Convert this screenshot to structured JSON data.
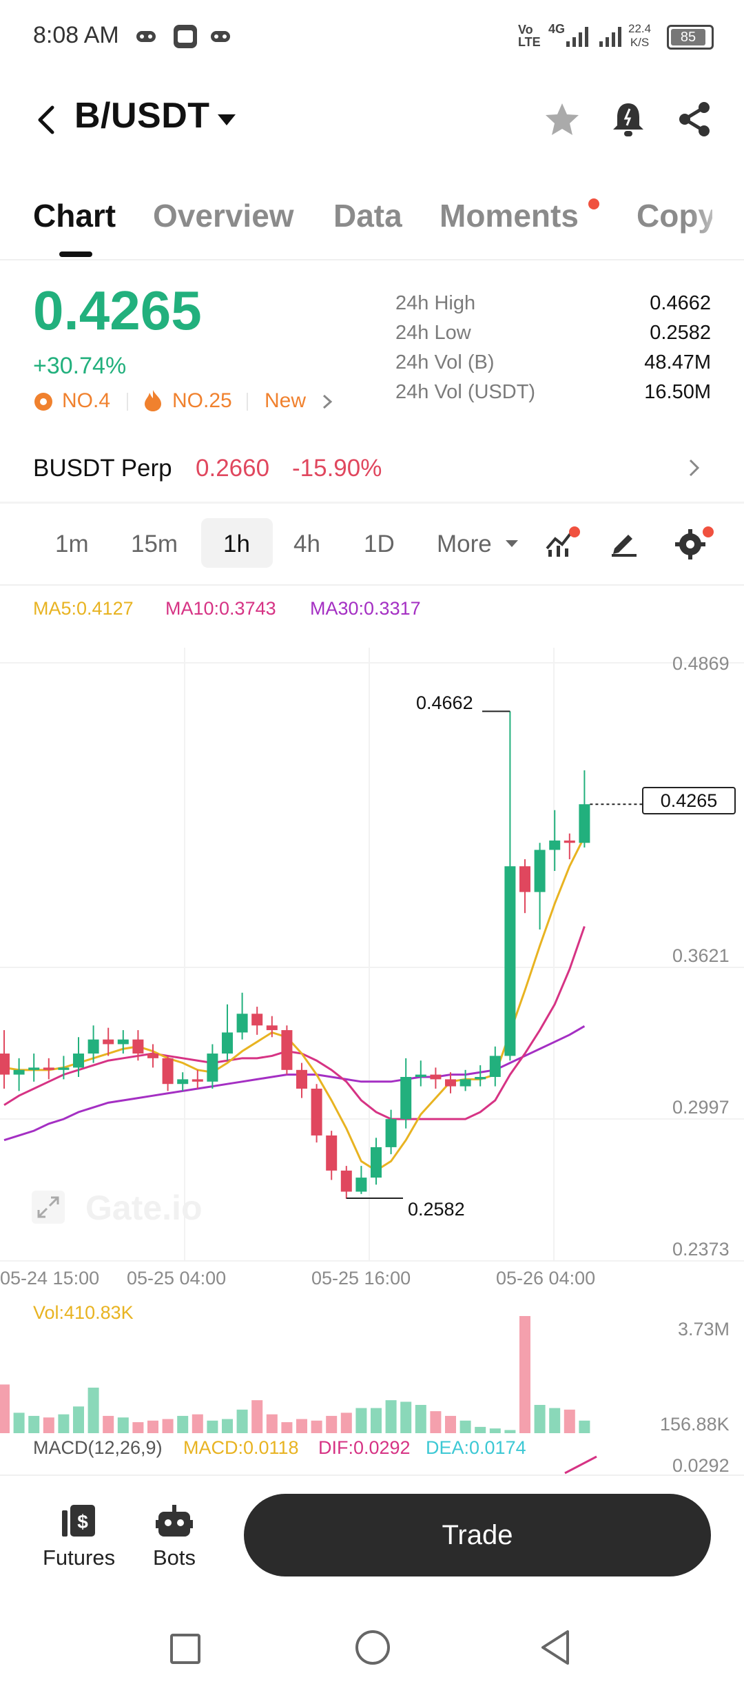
{
  "status_bar": {
    "time": "8:08 AM",
    "net_type": "4G",
    "net_speed_top": "22.4",
    "net_speed_unit": "K/S",
    "battery": "85",
    "icons": [
      "game-icon",
      "vpn-icon",
      "game-icon",
      "volte-icon",
      "signal-icon",
      "signal-icon",
      "battery-icon"
    ]
  },
  "header": {
    "pair": "B/USDT",
    "icons": [
      "back-icon",
      "chevron-down-icon",
      "star-icon",
      "bell-icon",
      "share-icon"
    ]
  },
  "tabs": [
    {
      "label": "Chart",
      "active": true
    },
    {
      "label": "Overview",
      "active": false
    },
    {
      "label": "Data",
      "active": false
    },
    {
      "label": "Moments",
      "active": false,
      "dot": true
    },
    {
      "label": "Copy",
      "active": false
    }
  ],
  "price": {
    "last": "0.4265",
    "change": "+30.74%",
    "rank1": "NO.4",
    "rank2": "NO.25",
    "tag": "New"
  },
  "stats": [
    {
      "label": "24h High",
      "value": "0.4662"
    },
    {
      "label": "24h Low",
      "value": "0.2582"
    },
    {
      "label": "24h Vol (B)",
      "value": "48.47M"
    },
    {
      "label": "24h Vol (USDT)",
      "value": "16.50M"
    }
  ],
  "perp": {
    "name": "BUSDT Perp",
    "price": "0.2660",
    "change": "-15.90%"
  },
  "intervals": {
    "items": [
      "1m",
      "15m",
      "1h",
      "4h",
      "1D"
    ],
    "active": "1h",
    "more_label": "More"
  },
  "ma_legend": {
    "ma5": "MA5:0.4127",
    "ma10": "MA10:0.3743",
    "ma30": "MA30:0.3317"
  },
  "colors": {
    "up": "#22b07d",
    "down": "#e0475e",
    "ma5": "#e8b321",
    "ma10": "#d63384",
    "ma30": "#a42fc3",
    "dea": "#3cc8d4"
  },
  "chart_data": {
    "type": "candlestick",
    "title": "",
    "y_ticks": [
      "0.4869",
      "0.3621",
      "0.2997",
      "0.2373"
    ],
    "ylim": [
      0.2373,
      0.4869
    ],
    "x_ticks": [
      "05-24 15:00",
      "05-25 04:00",
      "05-25 16:00",
      "05-26 04:00"
    ],
    "high_label": "0.4662",
    "low_label": "0.2582",
    "last_label": "0.4265",
    "watermark": "Gate.io",
    "candles": [
      {
        "o": 0.32,
        "c": 0.311,
        "h": 0.33,
        "l": 0.305
      },
      {
        "o": 0.311,
        "c": 0.313,
        "h": 0.318,
        "l": 0.304
      },
      {
        "o": 0.313,
        "c": 0.314,
        "h": 0.32,
        "l": 0.308
      },
      {
        "o": 0.314,
        "c": 0.313,
        "h": 0.318,
        "l": 0.309
      },
      {
        "o": 0.313,
        "c": 0.314,
        "h": 0.319,
        "l": 0.309
      },
      {
        "o": 0.314,
        "c": 0.32,
        "h": 0.327,
        "l": 0.31
      },
      {
        "o": 0.32,
        "c": 0.326,
        "h": 0.332,
        "l": 0.316
      },
      {
        "o": 0.326,
        "c": 0.324,
        "h": 0.331,
        "l": 0.319
      },
      {
        "o": 0.324,
        "c": 0.326,
        "h": 0.33,
        "l": 0.32
      },
      {
        "o": 0.326,
        "c": 0.32,
        "h": 0.33,
        "l": 0.317
      },
      {
        "o": 0.32,
        "c": 0.318,
        "h": 0.324,
        "l": 0.314
      },
      {
        "o": 0.318,
        "c": 0.307,
        "h": 0.319,
        "l": 0.304
      },
      {
        "o": 0.307,
        "c": 0.309,
        "h": 0.312,
        "l": 0.304
      },
      {
        "o": 0.309,
        "c": 0.308,
        "h": 0.313,
        "l": 0.305
      },
      {
        "o": 0.308,
        "c": 0.32,
        "h": 0.324,
        "l": 0.305
      },
      {
        "o": 0.32,
        "c": 0.329,
        "h": 0.341,
        "l": 0.317
      },
      {
        "o": 0.329,
        "c": 0.337,
        "h": 0.346,
        "l": 0.326
      },
      {
        "o": 0.337,
        "c": 0.332,
        "h": 0.34,
        "l": 0.328
      },
      {
        "o": 0.332,
        "c": 0.33,
        "h": 0.336,
        "l": 0.327
      },
      {
        "o": 0.33,
        "c": 0.313,
        "h": 0.332,
        "l": 0.311
      },
      {
        "o": 0.313,
        "c": 0.305,
        "h": 0.316,
        "l": 0.301
      },
      {
        "o": 0.305,
        "c": 0.285,
        "h": 0.307,
        "l": 0.282
      },
      {
        "o": 0.285,
        "c": 0.27,
        "h": 0.287,
        "l": 0.266
      },
      {
        "o": 0.27,
        "c": 0.261,
        "h": 0.272,
        "l": 0.258
      },
      {
        "o": 0.261,
        "c": 0.267,
        "h": 0.272,
        "l": 0.26
      },
      {
        "o": 0.267,
        "c": 0.28,
        "h": 0.284,
        "l": 0.264
      },
      {
        "o": 0.28,
        "c": 0.292,
        "h": 0.296,
        "l": 0.277
      },
      {
        "o": 0.292,
        "c": 0.31,
        "h": 0.318,
        "l": 0.288
      },
      {
        "o": 0.31,
        "c": 0.311,
        "h": 0.317,
        "l": 0.306
      },
      {
        "o": 0.311,
        "c": 0.309,
        "h": 0.314,
        "l": 0.305
      },
      {
        "o": 0.309,
        "c": 0.306,
        "h": 0.312,
        "l": 0.303
      },
      {
        "o": 0.306,
        "c": 0.309,
        "h": 0.313,
        "l": 0.304
      },
      {
        "o": 0.309,
        "c": 0.31,
        "h": 0.315,
        "l": 0.306
      },
      {
        "o": 0.31,
        "c": 0.319,
        "h": 0.323,
        "l": 0.306
      },
      {
        "o": 0.319,
        "c": 0.4,
        "h": 0.4662,
        "l": 0.317
      },
      {
        "o": 0.4,
        "c": 0.389,
        "h": 0.403,
        "l": 0.38
      },
      {
        "o": 0.389,
        "c": 0.407,
        "h": 0.41,
        "l": 0.373
      },
      {
        "o": 0.407,
        "c": 0.411,
        "h": 0.424,
        "l": 0.398
      },
      {
        "o": 0.411,
        "c": 0.41,
        "h": 0.414,
        "l": 0.403
      },
      {
        "o": 0.41,
        "c": 0.4265,
        "h": 0.441,
        "l": 0.408
      }
    ],
    "ma5": [
      0.314,
      0.313,
      0.313,
      0.313,
      0.314,
      0.316,
      0.318,
      0.32,
      0.322,
      0.323,
      0.321,
      0.318,
      0.316,
      0.313,
      0.312,
      0.316,
      0.321,
      0.325,
      0.329,
      0.327,
      0.32,
      0.311,
      0.3,
      0.288,
      0.274,
      0.27,
      0.274,
      0.283,
      0.294,
      0.301,
      0.308,
      0.309,
      0.309,
      0.311,
      0.329,
      0.347,
      0.366,
      0.384,
      0.4,
      0.4127
    ],
    "ma10": [
      0.298,
      0.302,
      0.305,
      0.308,
      0.311,
      0.313,
      0.315,
      0.317,
      0.318,
      0.319,
      0.32,
      0.319,
      0.318,
      0.317,
      0.316,
      0.317,
      0.318,
      0.318,
      0.319,
      0.321,
      0.32,
      0.317,
      0.313,
      0.308,
      0.3,
      0.295,
      0.292,
      0.292,
      0.292,
      0.292,
      0.292,
      0.292,
      0.295,
      0.3,
      0.311,
      0.32,
      0.33,
      0.341,
      0.356,
      0.3743
    ],
    "ma30": [
      0.283,
      0.285,
      0.287,
      0.29,
      0.292,
      0.295,
      0.297,
      0.299,
      0.3,
      0.301,
      0.302,
      0.303,
      0.304,
      0.305,
      0.306,
      0.307,
      0.308,
      0.309,
      0.31,
      0.311,
      0.311,
      0.311,
      0.31,
      0.309,
      0.308,
      0.308,
      0.308,
      0.309,
      0.31,
      0.31,
      0.311,
      0.311,
      0.312,
      0.313,
      0.316,
      0.319,
      0.322,
      0.325,
      0.328,
      0.3317
    ]
  },
  "volume": {
    "label": "Vol:410.83K",
    "max_label": "3.73M",
    "min_label": "156.88K",
    "bars": [
      1.55,
      0.65,
      0.55,
      0.5,
      0.6,
      0.85,
      1.45,
      0.55,
      0.5,
      0.35,
      0.4,
      0.45,
      0.55,
      0.6,
      0.4,
      0.45,
      0.75,
      1.05,
      0.6,
      0.35,
      0.45,
      0.4,
      0.55,
      0.65,
      0.8,
      0.8,
      1.05,
      1.0,
      0.9,
      0.7,
      0.55,
      0.4,
      0.2,
      0.15,
      0.1,
      3.73,
      0.9,
      0.8,
      0.75,
      0.4
    ]
  },
  "macd": {
    "title": "MACD(12,26,9)",
    "macd": "MACD:0.0118",
    "dif": "DIF:0.0292",
    "dea": "DEA:0.0174",
    "axis": "0.0292"
  },
  "bottom_nav": {
    "futures_label": "Futures",
    "bots_label": "Bots",
    "trade_label": "Trade"
  },
  "system_nav": [
    "recent-apps-icon",
    "home-icon",
    "back-icon"
  ]
}
